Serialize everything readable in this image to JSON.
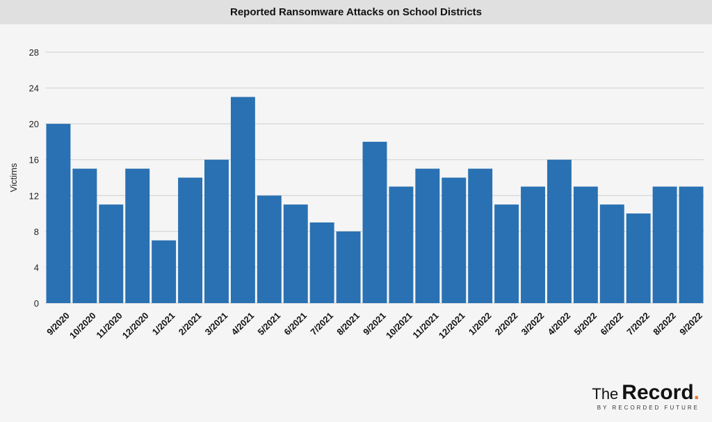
{
  "chart_data": {
    "type": "bar",
    "title": "Reported Ransomware Attacks on School Districts",
    "xlabel": "",
    "ylabel": "Victims",
    "ylim": [
      0,
      28
    ],
    "yticks": [
      0,
      4,
      8,
      12,
      16,
      20,
      24,
      28
    ],
    "grid": true,
    "legend": "none",
    "bar_color": "#2971b2",
    "categories": [
      "9/2020",
      "10/2020",
      "11/2020",
      "12/2020",
      "1/2021",
      "2/2021",
      "3/2021",
      "4/2021",
      "5/2021",
      "6/2021",
      "7/2021",
      "8/2021",
      "9/2021",
      "10/2021",
      "11/2021",
      "12/2021",
      "1/2022",
      "2/2022",
      "3/2022",
      "4/2022",
      "5/2022",
      "6/2022",
      "7/2022",
      "8/2022",
      "9/2022"
    ],
    "values": [
      20,
      15,
      11,
      15,
      7,
      14,
      16,
      23,
      12,
      11,
      9,
      8,
      18,
      13,
      15,
      14,
      15,
      11,
      13,
      16,
      13,
      11,
      10,
      13,
      13
    ]
  },
  "logo": {
    "the": "The",
    "record": "Record",
    "dot": ".",
    "sub": "BY RECORDED FUTURE",
    "accent_color": "#e8772e"
  }
}
